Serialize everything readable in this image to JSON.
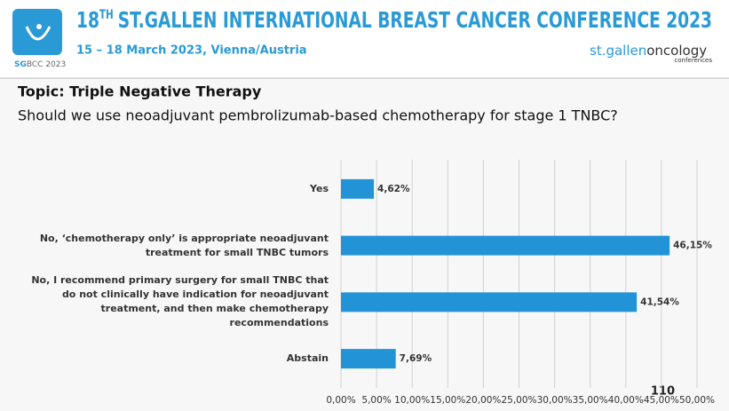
{
  "header": {
    "title_number": "18",
    "title_suffix": "TH",
    "title_rest": "ST.GALLEN INTERNATIONAL BREAST CANCER CONFERENCE 2023",
    "dates": "15 – 18 March 2023, Vienna/Austria",
    "logo_left_bold": "SG",
    "logo_left_rest": "BCC 2023",
    "logo_right_a": "st.gallen",
    "logo_right_b": "oncology",
    "logo_right_c": "conferences"
  },
  "topic": "Topic: Triple Negative Therapy",
  "question": "Should we use neoadjuvant pembrolizumab-based chemotherapy for stage 1 TNBC?",
  "slide_number": "110",
  "chart_data": {
    "type": "bar",
    "orientation": "horizontal",
    "categories": [
      "Yes",
      "No, ‘chemotherapy only’ is appropriate neoadjuvant treatment for small TNBC tumors",
      "No, I recommend primary surgery for small TNBC that do not clinically have indication for neoadjuvant treatment, and then make chemotherapy recommendations",
      "Abstain"
    ],
    "values": [
      4.62,
      46.15,
      41.54,
      7.69
    ],
    "value_labels": [
      "4,62%",
      "46,15%",
      "41,54%",
      "7,69%"
    ],
    "color": "#2393d8",
    "xlim": [
      0,
      50
    ],
    "xticks": [
      {
        "value": 0,
        "label": "0,00%"
      },
      {
        "value": 5,
        "label": "5,00%"
      },
      {
        "value": 10,
        "label": "10,00%"
      },
      {
        "value": 15,
        "label": "15,00%"
      },
      {
        "value": 20,
        "label": "20,00%"
      },
      {
        "value": 25,
        "label": "25,00%"
      },
      {
        "value": 30,
        "label": "30,00%"
      },
      {
        "value": 35,
        "label": "35,00%"
      },
      {
        "value": 40,
        "label": "40,00%"
      },
      {
        "value": 45,
        "label": "45,00%"
      },
      {
        "value": 50,
        "label": "50,00%"
      }
    ],
    "grid": true
  }
}
